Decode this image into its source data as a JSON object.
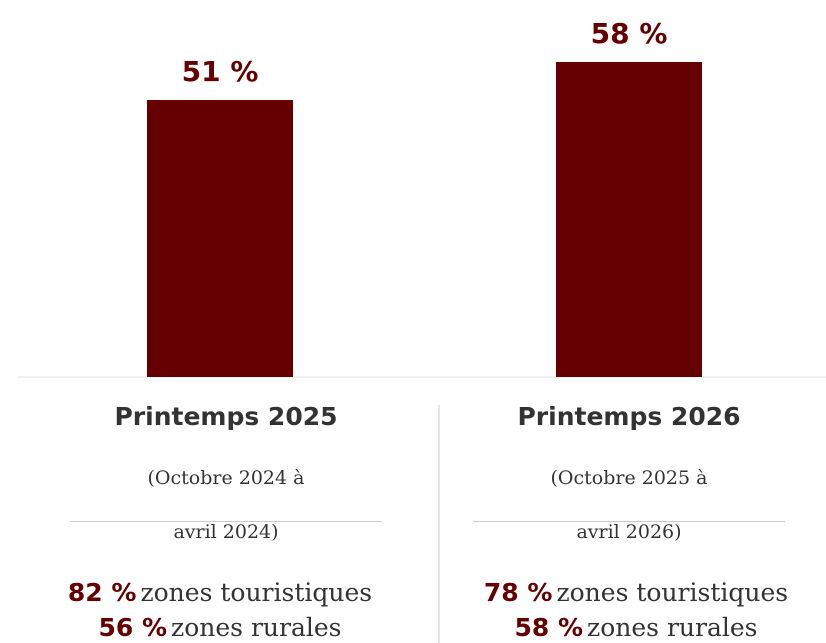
{
  "chart_data": {
    "type": "bar",
    "categories": [
      "Printemps 2025",
      "Printemps 2026"
    ],
    "values": [
      51,
      58
    ],
    "value_labels": [
      "51 %",
      "58 %"
    ],
    "ylim": [
      0,
      58
    ],
    "grid": false,
    "bar_color": "#660000"
  },
  "periods": [
    {
      "title": "Printemps 2025",
      "subtitle_line1": "(Octobre 2024 à",
      "subtitle_line2": "avril 2024)",
      "stats": [
        {
          "value": "82 %",
          "label": "zones touristiques"
        },
        {
          "value": "56 %",
          "label": "zones rurales"
        }
      ]
    },
    {
      "title": "Printemps 2026",
      "subtitle_line1": "(Octobre 2025 à",
      "subtitle_line2": "avril 2026)",
      "stats": [
        {
          "value": "78 %",
          "label": "zones touristiques"
        },
        {
          "value": "58 %",
          "label": "zones rurales"
        }
      ]
    }
  ],
  "colors": {
    "accent": "#660000",
    "text": "#333333",
    "rule": "#cccccc"
  }
}
